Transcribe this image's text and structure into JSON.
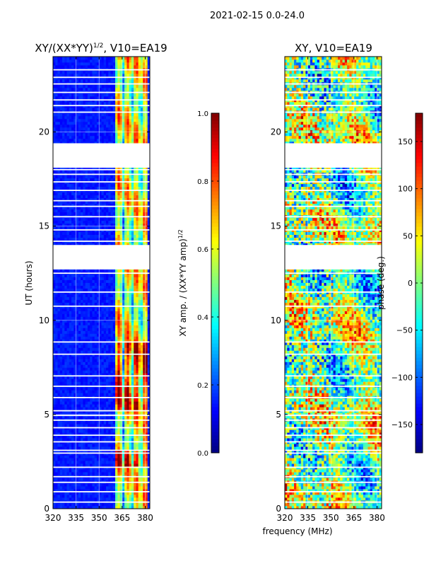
{
  "figure_title": "2021-02-15 0.0-24.0",
  "chart_data": [
    {
      "type": "heatmap",
      "title": "XY/(XX*YY)",
      "title_exp": "1/2",
      "title_suffix": ", V10=EA19",
      "xlabel": "",
      "ylabel": "UT (hours)",
      "xlim": [
        320,
        383
      ],
      "ylim": [
        0,
        24
      ],
      "xticks": [
        320,
        335,
        350,
        365,
        380
      ],
      "yticks": [
        0,
        5,
        10,
        15,
        20
      ],
      "grid": true,
      "colormap": "jet",
      "colorbar": {
        "label": "XY amp. / (XX*YY amp)",
        "label_exp": "1/2",
        "vmin": 0.0,
        "vmax": 1.0,
        "ticks": [
          0.0,
          0.2,
          0.4,
          0.6,
          0.8,
          1.0
        ],
        "tick_labels": [
          "0.0",
          "0.2",
          "0.4",
          "0.6",
          "0.8",
          "1.0"
        ]
      },
      "masked_hours": [
        [
          12.7,
          14.0
        ],
        [
          18.1,
          19.4
        ]
      ],
      "active_band_mhz": [
        360,
        382
      ],
      "background_level": 0.12
    },
    {
      "type": "heatmap",
      "title": "XY, V10=EA19",
      "xlabel": "frequency (MHz)",
      "ylabel": "",
      "xlim": [
        320,
        383
      ],
      "ylim": [
        0,
        24
      ],
      "xticks": [
        320,
        335,
        350,
        365,
        380
      ],
      "yticks": [
        0,
        5,
        10,
        15,
        20
      ],
      "grid": true,
      "colormap": "jet",
      "colorbar": {
        "label": "phase (deg.)",
        "vmin": -180,
        "vmax": 180,
        "ticks": [
          -150,
          -100,
          -50,
          0,
          50,
          100,
          150
        ],
        "tick_labels": [
          "−150",
          "−100",
          "−50",
          "0",
          "50",
          "100",
          "150"
        ]
      },
      "masked_hours": [
        [
          12.7,
          14.0
        ],
        [
          18.1,
          19.4
        ]
      ]
    }
  ]
}
